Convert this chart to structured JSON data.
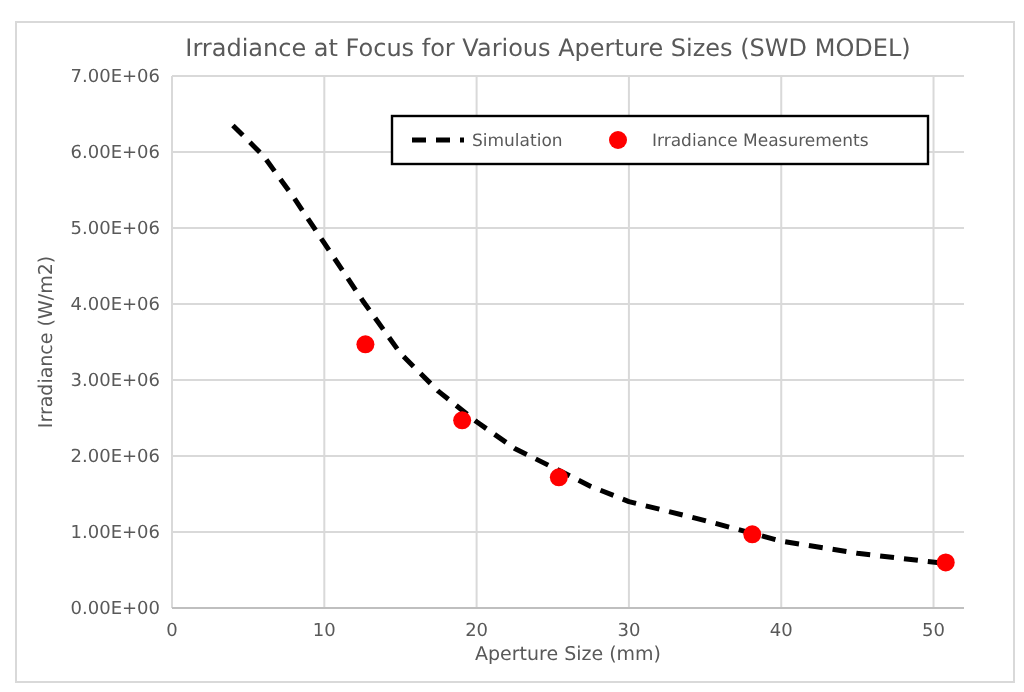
{
  "chart_data": {
    "type": "line",
    "title": "Irradiance at Focus for Various Aperture Sizes (SWD MODEL)",
    "xlabel": "Aperture Size (mm)",
    "ylabel": "Irradiance (W/m2)",
    "xlim": [
      0,
      52
    ],
    "xticks": [
      0,
      10,
      20,
      30,
      40,
      50
    ],
    "ylim": [
      0,
      7000000
    ],
    "yticks": [
      {
        "value": 0,
        "label": "0.00E+00"
      },
      {
        "value": 1000000,
        "label": "1.00E+06"
      },
      {
        "value": 2000000,
        "label": "2.00E+06"
      },
      {
        "value": 3000000,
        "label": "3.00E+06"
      },
      {
        "value": 4000000,
        "label": "4.00E+06"
      },
      {
        "value": 5000000,
        "label": "5.00E+06"
      },
      {
        "value": 6000000,
        "label": "6.00E+06"
      },
      {
        "value": 7000000,
        "label": "7.00E+06"
      }
    ],
    "grid": true,
    "legend": "top right",
    "series": [
      {
        "name": "Simulation",
        "color": "#000000",
        "line_style": "dashed",
        "marker": "none",
        "x": [
          4,
          6,
          8,
          10,
          12.5,
          15,
          17.5,
          20,
          22.5,
          25,
          27.5,
          30,
          35,
          40,
          45,
          51
        ],
        "values": [
          6350000,
          5950000,
          5400000,
          4800000,
          4050000,
          3350000,
          2850000,
          2450000,
          2100000,
          1850000,
          1600000,
          1400000,
          1150000,
          880000,
          720000,
          580000
        ]
      },
      {
        "name": "Irradiance Measurements",
        "type": "scatter",
        "color": "#ff0000",
        "marker": "circle",
        "x": [
          12.7,
          19.05,
          25.4,
          38.1,
          50.8
        ],
        "values": [
          3470000,
          2470000,
          1720000,
          970000,
          600000
        ]
      }
    ]
  }
}
